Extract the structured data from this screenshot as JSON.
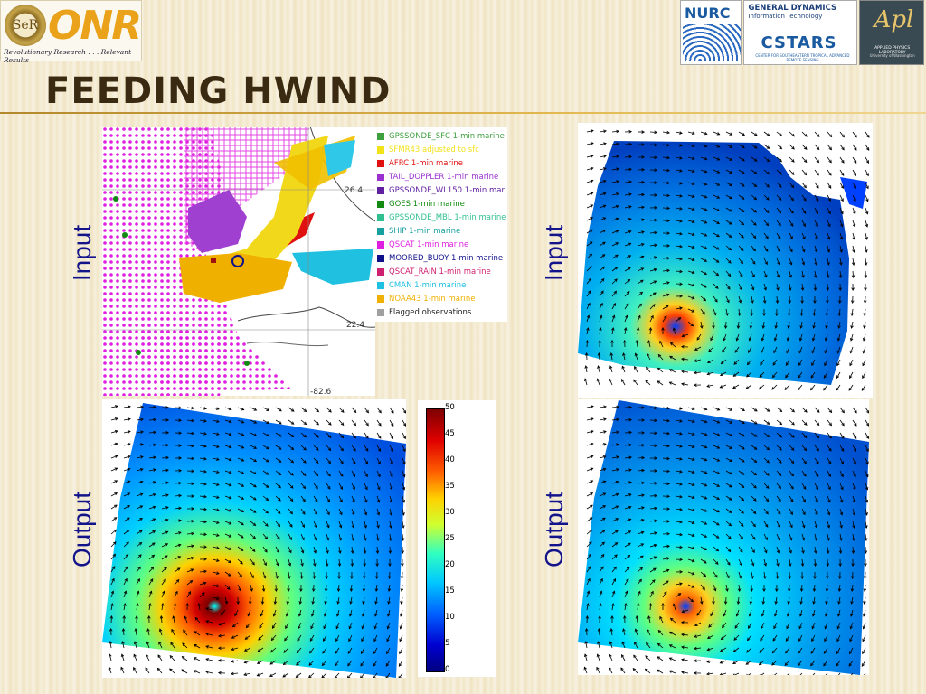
{
  "header": {
    "onr_logo": "ONR",
    "onr_seal_text": "SeR",
    "onr_tagline": "Revolutionary Research . . . Relevant Results",
    "nurc_logo": "NURC",
    "gd_line1": "GENERAL DYNAMICS",
    "gd_line2": "Information Technology",
    "cstars_logo": "CSTARS",
    "cstars_sub": "CENTER FOR SOUTHEASTERN TROPICAL ADVANCED REMOTE SENSING",
    "apl_mark": "Apl",
    "apl_line1": "APPLIED PHYSICS LABORATORY",
    "apl_line2": "University of Washington"
  },
  "slide": {
    "title": "Feeding HWIND",
    "labels": {
      "input_left": "Input",
      "input_right": "Input",
      "output_left": "Output",
      "output_right": "Output"
    }
  },
  "map": {
    "lat_north": "26.4",
    "lat_south": "22.4",
    "lon": "-82.6",
    "legend": [
      {
        "label": "GPSSONDE_SFC 1-min marine",
        "color": "#3fa03f"
      },
      {
        "label": "SFMR43 adjusted to sfc",
        "color": "#f2e21a"
      },
      {
        "label": "AFRC 1-min marine",
        "color": "#e01010"
      },
      {
        "label": "TAIL_DOPPLER 1-min marine",
        "color": "#9a30d0"
      },
      {
        "label": "GPSSONDE_WL150 1-min mar",
        "color": "#6020a0"
      },
      {
        "label": "GOES 1-min marine",
        "color": "#108a10"
      },
      {
        "label": "GPSSONDE_MBL 1-min marine",
        "color": "#30c090"
      },
      {
        "label": "SHIP 1-min marine",
        "color": "#18a0a0"
      },
      {
        "label": "QSCAT 1-min marine",
        "color": "#e020e0"
      },
      {
        "label": "MOORED_BUOY 1-min marine",
        "color": "#10108a"
      },
      {
        "label": "QSCAT_RAIN 1-min marine",
        "color": "#d02070"
      },
      {
        "label": "CMAN 1-min marine",
        "color": "#20c0e0"
      },
      {
        "label": "NOAA43 1-min marine",
        "color": "#f0b000"
      },
      {
        "label": "Flagged observations",
        "color": "#a0a0a0"
      }
    ]
  },
  "colorbar": {
    "ticks": [
      "50",
      "45",
      "40",
      "35",
      "30",
      "25",
      "20",
      "15",
      "10",
      "5",
      "0"
    ]
  }
}
